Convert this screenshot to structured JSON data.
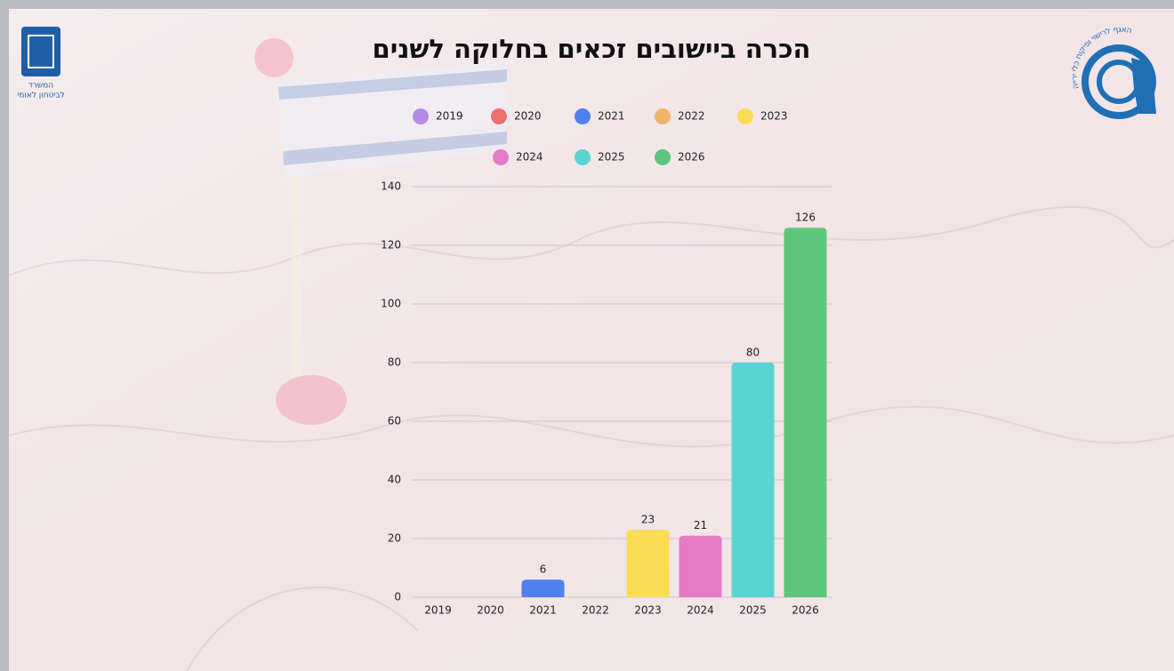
{
  "chart_data": {
    "type": "bar",
    "title": "הכרה ביישובים זכאים בחלוקה לשנים",
    "categories": [
      "2019",
      "2020",
      "2021",
      "2022",
      "2023",
      "2024",
      "2025",
      "2026"
    ],
    "values": [
      null,
      null,
      6,
      null,
      23,
      21,
      80,
      126
    ],
    "colors": [
      "#b48be6",
      "#ec7070",
      "#4f80ee",
      "#f2b36a",
      "#fbdc55",
      "#e77ac6",
      "#5ad4d2",
      "#5ec67a"
    ],
    "ylim": [
      0,
      140
    ],
    "yticks": [
      0,
      20,
      40,
      60,
      80,
      100,
      120,
      140
    ],
    "grid": true
  },
  "logos": {
    "left_line1": "המשרד",
    "left_line2": "לביטחון לאומי",
    "right_text": "האגף לרישוי ופיקוח כלי ירייה"
  }
}
